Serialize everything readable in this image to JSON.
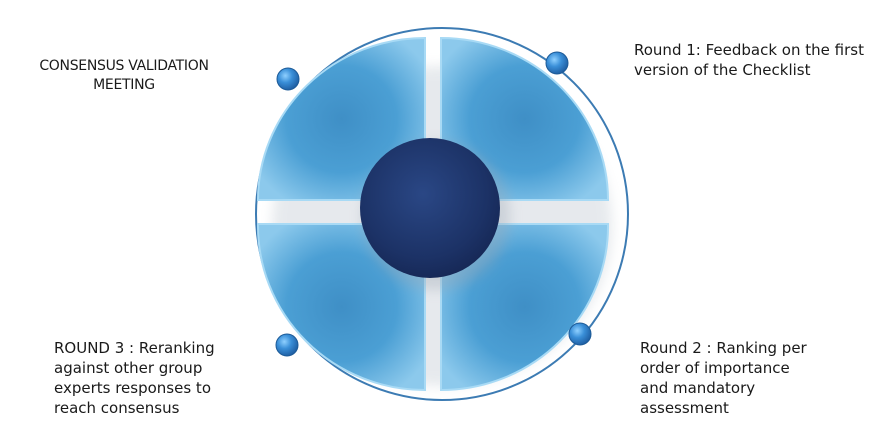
{
  "diagram": {
    "center_label": "",
    "stages": [
      {
        "id": "consensus",
        "lines": [
          "CONSENSUS VALIDATION",
          "MEETING"
        ]
      },
      {
        "id": "round1",
        "lines": [
          "Round 1: Feedback on the first",
          "version of the Checklist"
        ]
      },
      {
        "id": "round2",
        "lines": [
          "Round 2 : Ranking per",
          "order of importance",
          "and mandatory",
          "assessment"
        ]
      },
      {
        "id": "round3",
        "lines": [
          "ROUND 3 : Reranking",
          "against other group",
          "experts  responses to",
          "reach consensus"
        ]
      }
    ],
    "colors": {
      "segment_light": "#7fc0e6",
      "segment_mid": "#4aa0d2",
      "segment_dark": "#2f7fb6",
      "center_dark": "#1b2f63",
      "center_light": "#2b4a8a",
      "ring": "#3a78b0",
      "bead": "#2e78c0"
    }
  }
}
